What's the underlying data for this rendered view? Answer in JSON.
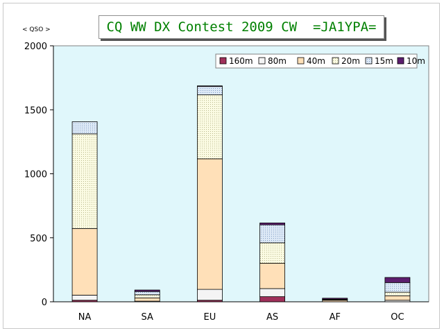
{
  "title": "CQ WW DX Contest 2009 CW  =JA1YPA=",
  "unit_label": "< QSO >",
  "chart_data": {
    "type": "bar",
    "stacked": true,
    "categories": [
      "NA",
      "SA",
      "EU",
      "AS",
      "AF",
      "OC"
    ],
    "ylim": [
      0,
      2000
    ],
    "yticks": [
      0,
      500,
      1000,
      1500,
      2000
    ],
    "ytick_labels": [
      "0",
      "500",
      "1000",
      "1500",
      "2000"
    ],
    "ylabel": "< QSO >",
    "xlabel": "",
    "grid": false,
    "legend_position": "top-right",
    "series": [
      {
        "name": "160m",
        "color": "#a0305a",
        "pattern": "solid",
        "values": [
          12,
          0,
          12,
          40,
          0,
          0
        ]
      },
      {
        "name": "80m",
        "color": "#f4f4f4",
        "pattern": "solid",
        "values": [
          40,
          5,
          85,
          63,
          0,
          12
        ]
      },
      {
        "name": "40m",
        "color": "#ffe0b8",
        "pattern": "solid",
        "values": [
          520,
          25,
          1020,
          198,
          12,
          35
        ]
      },
      {
        "name": "20m",
        "color": "#fbfbe3",
        "pattern": "dots",
        "values": [
          740,
          25,
          500,
          160,
          5,
          28
        ]
      },
      {
        "name": "15m",
        "color": "#d6e6f5",
        "pattern": "dots",
        "values": [
          95,
          25,
          65,
          140,
          3,
          75
        ]
      },
      {
        "name": "10m",
        "color": "#5c1e6e",
        "pattern": "solid",
        "values": [
          0,
          12,
          5,
          15,
          8,
          40
        ]
      }
    ]
  }
}
